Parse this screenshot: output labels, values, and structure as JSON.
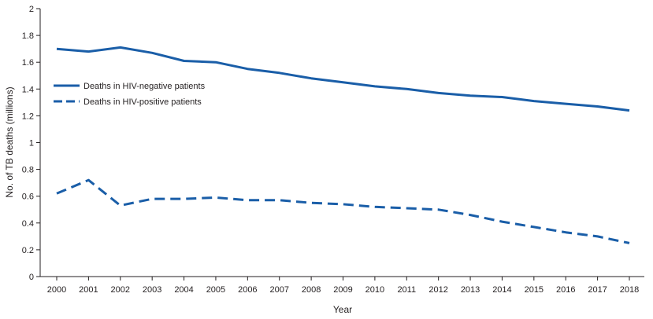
{
  "chart_data": {
    "type": "line",
    "title": "",
    "xlabel": "Year",
    "ylabel": "No. of TB deaths (millions)",
    "x": [
      "2000",
      "2001",
      "2002",
      "2003",
      "2004",
      "2005",
      "2006",
      "2007",
      "2008",
      "2009",
      "2010",
      "2011",
      "2012",
      "2013",
      "2014",
      "2015",
      "2016",
      "2017",
      "2018"
    ],
    "ylim": [
      0,
      2
    ],
    "yticks": [
      "0",
      "0.2",
      "0.4",
      "0.6",
      "0.8",
      "1",
      "1.2",
      "1.4",
      "1.6",
      "1.8",
      "2"
    ],
    "grid": false,
    "legend_position": "left",
    "color": "#1a5ea8",
    "series": [
      {
        "name": "Deaths in HIV-negative patients",
        "style": "solid",
        "values": [
          1.7,
          1.68,
          1.71,
          1.67,
          1.61,
          1.6,
          1.55,
          1.52,
          1.48,
          1.45,
          1.42,
          1.4,
          1.37,
          1.35,
          1.34,
          1.31,
          1.29,
          1.27,
          1.24
        ]
      },
      {
        "name": "Deaths in HIV-positive patients",
        "style": "dashed",
        "values": [
          0.62,
          0.72,
          0.53,
          0.58,
          0.58,
          0.59,
          0.57,
          0.57,
          0.55,
          0.54,
          0.52,
          0.51,
          0.5,
          0.46,
          0.41,
          0.37,
          0.33,
          0.3,
          0.25
        ]
      }
    ]
  }
}
